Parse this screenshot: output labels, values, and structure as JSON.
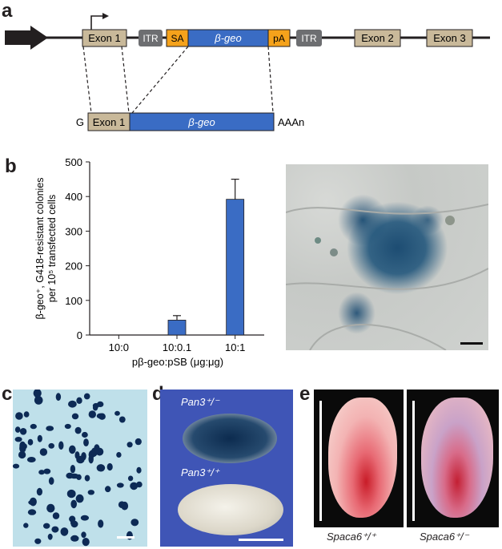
{
  "panels": {
    "a": "a",
    "b": "b",
    "c": "c",
    "d": "d",
    "e": "e"
  },
  "construct": {
    "elements": [
      "Exon 1",
      "ITR",
      "SA",
      "β-geo",
      "pA",
      "ITR",
      "Exon 2",
      "Exon 3"
    ],
    "transcript": {
      "prefix": "G",
      "exon": "Exon 1",
      "gene": "β-geo",
      "suffix": "AAAn"
    },
    "colors": {
      "exon": "#c9b99a",
      "itr": "#6d6e71",
      "sa_pa": "#f5a21b",
      "bgeo": "#3a6cc4"
    }
  },
  "chart_data": {
    "type": "bar",
    "categories": [
      "10:0",
      "10:0.1",
      "10:1"
    ],
    "values": [
      0,
      43,
      392
    ],
    "errors": [
      0,
      13,
      58
    ],
    "ylim": [
      0,
      500
    ],
    "yticks": [
      0,
      100,
      200,
      300,
      400,
      500
    ],
    "ylabel_line1": "β-geo⁺, G418-resistant colonies",
    "ylabel_line2": "per 10⁵ transfected cells",
    "xlabel": "pβ-geo:pSB (μg:μg)",
    "bar_color": "#3a6cc4",
    "grid": false
  },
  "photos": {
    "d_top": "Pan3⁺/⁻",
    "d_bottom": "Pan3⁺/⁺",
    "e_left": "Spaca6⁺/⁺",
    "e_right": "Spaca6⁺/⁻"
  }
}
